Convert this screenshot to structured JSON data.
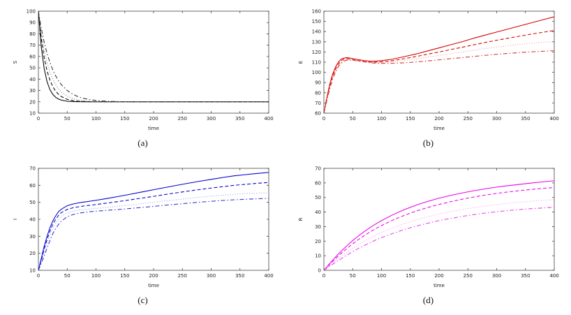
{
  "figure": {
    "panels": [
      {
        "caption": "(a)"
      },
      {
        "caption": "(b)"
      },
      {
        "caption": "(c)"
      },
      {
        "caption": "(d)"
      }
    ]
  },
  "chart_data": [
    {
      "type": "line",
      "title": "",
      "xlabel": "time",
      "ylabel": "S",
      "xlim": [
        0,
        400
      ],
      "ylim": [
        10,
        100
      ],
      "xticks": [
        0,
        50,
        100,
        150,
        200,
        250,
        300,
        350,
        400
      ],
      "yticks": [
        10,
        20,
        30,
        40,
        50,
        60,
        70,
        80,
        90,
        100
      ],
      "grid": false,
      "legend": "none",
      "x": [
        0,
        5,
        10,
        15,
        20,
        25,
        30,
        35,
        40,
        50,
        60,
        70,
        80,
        90,
        100,
        120,
        140,
        160,
        180,
        200,
        220,
        240,
        260,
        280,
        300,
        320,
        340,
        360,
        380,
        400
      ],
      "series": [
        {
          "name": "solid",
          "style": "solid",
          "color": "#000000",
          "values": [
            100,
            68.5,
            49.4,
            37.8,
            30.8,
            26.6,
            24,
            22.4,
            21.5,
            20.5,
            20.2,
            20.1,
            20,
            20,
            20,
            20,
            20,
            20,
            20,
            20,
            20,
            20,
            20,
            20,
            20,
            20,
            20,
            20,
            20,
            20
          ]
        },
        {
          "name": "dashed",
          "style": "dashed",
          "color": "#000000",
          "values": [
            100,
            76,
            59.2,
            47.4,
            39.2,
            33.4,
            29.4,
            26.6,
            24.6,
            22.2,
            21.1,
            20.5,
            20.3,
            20.1,
            20.1,
            20,
            20,
            20,
            20,
            20,
            20,
            20,
            20,
            20,
            20,
            20,
            20,
            20,
            20,
            20
          ]
        },
        {
          "name": "dotted",
          "style": "dotted",
          "color": "#888888",
          "values": [
            100,
            80.6,
            65.9,
            54.8,
            46.3,
            39.9,
            35.1,
            31.5,
            28.7,
            25,
            22.9,
            21.6,
            20.9,
            20.5,
            20.3,
            20.1,
            20,
            20,
            20,
            20,
            20,
            20,
            20,
            20,
            20,
            20,
            20,
            20,
            20,
            20
          ]
        },
        {
          "name": "dash-dot",
          "style": "dash-dot",
          "color": "#333333",
          "values": [
            100,
            85,
            72.7,
            62.8,
            54.8,
            48.2,
            42.9,
            38.6,
            35.1,
            30,
            26.6,
            24.3,
            22.9,
            21.9,
            21.2,
            20.5,
            20.2,
            20.1,
            20,
            20,
            20,
            20,
            20,
            20,
            20,
            20,
            20,
            20,
            20,
            20
          ]
        }
      ]
    },
    {
      "type": "line",
      "title": "",
      "xlabel": "time",
      "ylabel": "E",
      "xlim": [
        0,
        400
      ],
      "ylim": [
        60,
        160
      ],
      "xticks": [
        0,
        50,
        100,
        150,
        200,
        250,
        300,
        350,
        400
      ],
      "yticks": [
        60,
        70,
        80,
        90,
        100,
        110,
        120,
        130,
        140,
        150,
        160
      ],
      "grid": false,
      "legend": "none",
      "x": [
        0,
        5,
        10,
        15,
        20,
        25,
        30,
        35,
        40,
        50,
        60,
        70,
        80,
        90,
        100,
        120,
        140,
        160,
        180,
        200,
        220,
        240,
        260,
        280,
        300,
        320,
        340,
        360,
        380,
        400
      ],
      "series": [
        {
          "name": "solid",
          "style": "solid",
          "color": "#d40000",
          "values": [
            60,
            75,
            88,
            98,
            105,
            110,
            113,
            114,
            114.5,
            113.5,
            112.5,
            111.5,
            111,
            111,
            111.5,
            113,
            115.5,
            118,
            121,
            124,
            127,
            130,
            133.5,
            136.5,
            139.5,
            142.5,
            145.5,
            148.5,
            151.5,
            154.5
          ]
        },
        {
          "name": "dashed",
          "style": "dashed",
          "color": "#d40000",
          "values": [
            60,
            74,
            86,
            96,
            103,
            108,
            111.5,
            113,
            113.5,
            112.5,
            111.5,
            110.5,
            110,
            110,
            110.3,
            111.5,
            113.5,
            115.5,
            117.8,
            120,
            122.3,
            124.6,
            127,
            129.3,
            131.5,
            133.5,
            135.5,
            137.5,
            139.3,
            141
          ]
        },
        {
          "name": "dotted",
          "style": "dotted",
          "color": "#f0a0a0",
          "values": [
            60,
            73,
            85,
            94.5,
            101.5,
            106.5,
            110,
            111.8,
            112.5,
            112,
            111,
            110.2,
            109.7,
            109.5,
            109.6,
            110.3,
            111.6,
            113.2,
            114.9,
            116.6,
            118.3,
            120,
            121.7,
            123.3,
            124.8,
            126.2,
            127.5,
            128.6,
            129.5,
            130.3
          ]
        },
        {
          "name": "dash-dot",
          "style": "dash-dot",
          "color": "#d43030",
          "values": [
            60,
            72,
            83.5,
            93,
            100,
            105.5,
            109,
            111,
            112,
            112,
            111.2,
            110.3,
            109.5,
            109,
            108.8,
            108.9,
            109.4,
            110.2,
            111.2,
            112.3,
            113.4,
            114.5,
            115.6,
            116.7,
            117.7,
            118.6,
            119.4,
            120.1,
            120.7,
            121.2
          ]
        }
      ]
    },
    {
      "type": "line",
      "title": "",
      "xlabel": "time",
      "ylabel": "I",
      "xlim": [
        0,
        400
      ],
      "ylim": [
        10,
        70
      ],
      "xticks": [
        0,
        50,
        100,
        150,
        200,
        250,
        300,
        350,
        400
      ],
      "yticks": [
        10,
        20,
        30,
        40,
        50,
        60,
        70
      ],
      "grid": false,
      "legend": "none",
      "x": [
        0,
        5,
        10,
        15,
        20,
        25,
        30,
        35,
        40,
        50,
        60,
        70,
        80,
        90,
        100,
        120,
        140,
        160,
        180,
        200,
        220,
        240,
        260,
        280,
        300,
        320,
        340,
        360,
        380,
        400
      ],
      "series": [
        {
          "name": "solid",
          "style": "solid",
          "color": "#0000cc",
          "values": [
            10,
            17,
            24,
            30,
            35,
            39,
            42,
            44.5,
            46,
            48,
            49,
            49.7,
            50.2,
            50.7,
            51.2,
            52.3,
            53.5,
            54.8,
            56.1,
            57.4,
            58.7,
            60,
            61.2,
            62.4,
            63.5,
            64.6,
            65.6,
            66.3,
            67,
            67.6
          ]
        },
        {
          "name": "dashed",
          "style": "dashed",
          "color": "#0000cc",
          "values": [
            10,
            16,
            22.5,
            28,
            33,
            37,
            40,
            42.3,
            44,
            45.8,
            46.8,
            47.4,
            47.9,
            48.3,
            48.7,
            49.6,
            50.5,
            51.5,
            52.5,
            53.5,
            54.6,
            55.6,
            56.6,
            57.5,
            58.4,
            59.2,
            60,
            60.6,
            61.2,
            61.7
          ]
        },
        {
          "name": "dotted",
          "style": "dotted",
          "color": "#a0a8e8",
          "values": [
            10,
            15,
            20.5,
            26,
            30.5,
            34.5,
            37.5,
            40,
            41.8,
            43.8,
            44.8,
            45.4,
            45.8,
            46.1,
            46.4,
            47,
            47.7,
            48.4,
            49.2,
            50,
            50.8,
            51.5,
            52.3,
            53,
            53.6,
            54.2,
            54.7,
            55.1,
            55.4,
            55.7
          ]
        },
        {
          "name": "dash-dot",
          "style": "dash-dot",
          "color": "#3030cc",
          "values": [
            10,
            14,
            18.5,
            23,
            27.5,
            31.5,
            34.5,
            37,
            39,
            41.5,
            42.8,
            43.6,
            44.1,
            44.5,
            44.8,
            45.3,
            45.8,
            46.4,
            47,
            47.6,
            48.3,
            48.9,
            49.5,
            50.1,
            50.6,
            51.1,
            51.5,
            51.8,
            52.1,
            52.3
          ]
        }
      ]
    },
    {
      "type": "line",
      "title": "",
      "xlabel": "time",
      "ylabel": "R",
      "xlim": [
        0,
        400
      ],
      "ylim": [
        0,
        70
      ],
      "xticks": [
        0,
        50,
        100,
        150,
        200,
        250,
        300,
        350,
        400
      ],
      "yticks": [
        0,
        10,
        20,
        30,
        40,
        50,
        60,
        70
      ],
      "grid": false,
      "legend": "none",
      "x": [
        0,
        5,
        10,
        15,
        20,
        25,
        30,
        35,
        40,
        50,
        60,
        70,
        80,
        90,
        100,
        120,
        140,
        160,
        180,
        200,
        220,
        240,
        260,
        280,
        300,
        320,
        340,
        360,
        380,
        400
      ],
      "series": [
        {
          "name": "solid",
          "style": "solid",
          "color": "#e800e8",
          "values": [
            0,
            2.3,
            4.6,
            6.8,
            9,
            11.1,
            13.1,
            15,
            16.9,
            20.4,
            23.6,
            26.6,
            29.3,
            31.8,
            34.1,
            38.2,
            41.7,
            44.7,
            47.3,
            49.5,
            51.4,
            53.1,
            54.6,
            55.9,
            57.1,
            58.1,
            59,
            59.9,
            60.7,
            61.5
          ]
        },
        {
          "name": "dashed",
          "style": "dashed",
          "color": "#e800e8",
          "values": [
            0,
            2,
            4,
            6,
            7.9,
            9.8,
            11.6,
            13.3,
            15,
            18.2,
            21.1,
            23.8,
            26.3,
            28.6,
            30.7,
            34.5,
            37.8,
            40.6,
            43.1,
            45.2,
            47.1,
            48.8,
            50.3,
            51.6,
            52.8,
            53.8,
            54.7,
            55.5,
            56.2,
            56.8
          ]
        },
        {
          "name": "dotted",
          "style": "dotted",
          "color": "#f8a0f8",
          "values": [
            0,
            1.6,
            3.3,
            4.9,
            6.5,
            8,
            9.6,
            11,
            12.5,
            15.2,
            17.7,
            20,
            22.2,
            24.2,
            26,
            29.3,
            32.1,
            34.6,
            36.7,
            38.6,
            40.3,
            41.7,
            43,
            44.1,
            45.1,
            46,
            46.8,
            47.4,
            48,
            48.5
          ]
        },
        {
          "name": "dash-dot",
          "style": "dash-dot",
          "color": "#e840e8",
          "values": [
            0,
            1.4,
            2.7,
            4.1,
            5.4,
            6.7,
            7.9,
            9.2,
            10.4,
            12.8,
            15,
            17,
            18.9,
            20.8,
            22.4,
            25.4,
            28,
            30.3,
            32.3,
            34.1,
            35.6,
            37,
            38.2,
            39.3,
            40.2,
            41,
            41.7,
            42.3,
            42.8,
            43.3
          ]
        }
      ]
    }
  ]
}
